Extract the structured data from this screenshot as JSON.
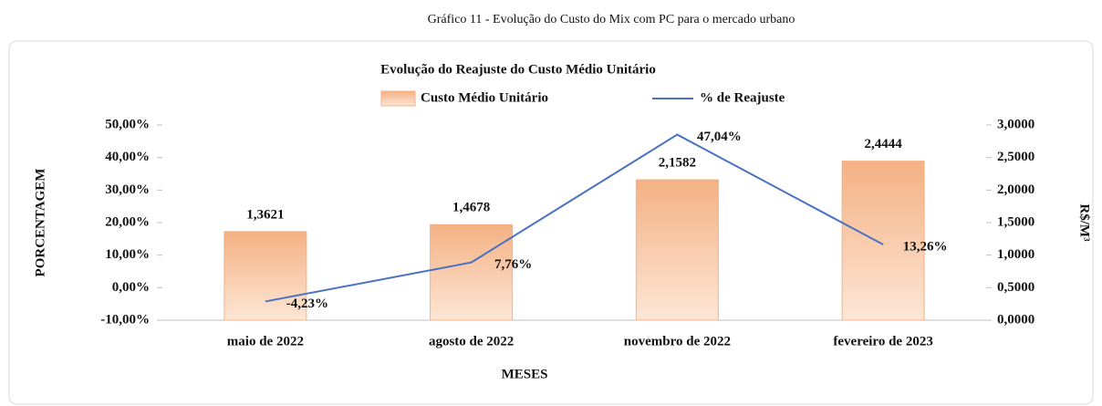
{
  "caption": "Gráfico 11 - Evolução do Custo do Mix com PC para o mercado urbano",
  "chart_data": {
    "type": "combo",
    "title": "Evolução do Reajuste do Custo Médio Unitário",
    "xlabel": "MESES",
    "ylabel": "PORCENTAGEM",
    "y2label": "R$/M³",
    "categories": [
      "maio de 2022",
      "agosto de 2022",
      "novembro de 2022",
      "fevereiro de 2023"
    ],
    "series": [
      {
        "name": "Custo Médio Unitário",
        "type": "bar",
        "axis": "y2",
        "color": "#f4b183",
        "values": [
          1.3621,
          1.4678,
          2.1582,
          2.4444
        ],
        "value_labels": [
          "1,3621",
          "1,4678",
          "2,1582",
          "2,4444"
        ]
      },
      {
        "name": "% de Reajuste",
        "type": "line",
        "axis": "y",
        "color": "#4a72c0",
        "values": [
          -4.23,
          7.76,
          47.04,
          13.26
        ],
        "value_labels": [
          "-4,23%",
          "7,76%",
          "47,04%",
          "13,26%"
        ]
      }
    ],
    "ylim": [
      -10,
      50
    ],
    "yticks": [
      {
        "value": -10,
        "label": "-10,00%"
      },
      {
        "value": 0,
        "label": "0,00%"
      },
      {
        "value": 10,
        "label": "10,00%"
      },
      {
        "value": 20,
        "label": "20,00%"
      },
      {
        "value": 30,
        "label": "30,00%"
      },
      {
        "value": 40,
        "label": "40,00%"
      },
      {
        "value": 50,
        "label": "50,00%"
      }
    ],
    "y2lim": [
      0,
      3
    ],
    "y2ticks": [
      {
        "value": 0,
        "label": "0,0000"
      },
      {
        "value": 0.5,
        "label": "0,5000"
      },
      {
        "value": 1,
        "label": "1,0000"
      },
      {
        "value": 1.5,
        "label": "1,5000"
      },
      {
        "value": 2,
        "label": "2,0000"
      },
      {
        "value": 2.5,
        "label": "2,5000"
      },
      {
        "value": 3,
        "label": "3,0000"
      }
    ],
    "legend": "top",
    "grid": false
  }
}
